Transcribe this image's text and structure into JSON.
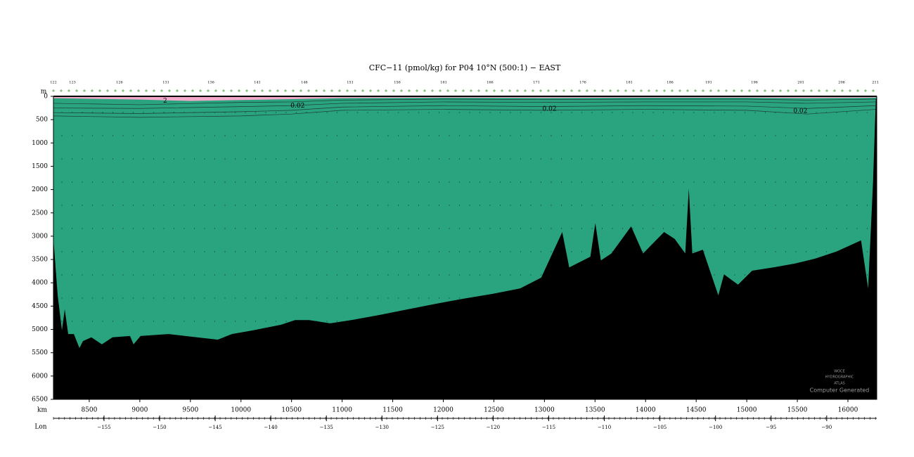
{
  "chart_data": {
    "type": "section",
    "title": "CFC−11 (pmol/kg) for P04 10°N (500:1) − EAST",
    "y_label": "m",
    "x_label": "km",
    "lon_label": "Lon",
    "ylim": [
      0,
      6500
    ],
    "yticks": [
      0,
      500,
      1000,
      1500,
      2000,
      2500,
      3000,
      3500,
      4000,
      4500,
      5000,
      5500,
      6000,
      6500
    ],
    "xlim": [
      8146,
      16285
    ],
    "xticks": [
      8500,
      9000,
      9500,
      10000,
      10500,
      11000,
      11500,
      12000,
      12500,
      13000,
      13500,
      14000,
      14500,
      15000,
      15500,
      16000
    ],
    "lonlim": [
      -159.55,
      -85.5
    ],
    "lonticks": [
      {
        "value": -155,
        "label": "−155"
      },
      {
        "value": -150,
        "label": "−150"
      },
      {
        "value": -145,
        "label": "−145"
      },
      {
        "value": -140,
        "label": "−140"
      },
      {
        "value": -135,
        "label": "−135"
      },
      {
        "value": -130,
        "label": "−130"
      },
      {
        "value": -125,
        "label": "−125"
      },
      {
        "value": -120,
        "label": "−120"
      },
      {
        "value": -115,
        "label": "−115"
      },
      {
        "value": -110,
        "label": "−110"
      },
      {
        "value": -105,
        "label": "−105"
      },
      {
        "value": -100,
        "label": "−100"
      },
      {
        "value": -95,
        "label": "−95"
      },
      {
        "value": -90,
        "label": "−90"
      }
    ],
    "stations": {
      "labels": [
        "122",
        "123",
        "126",
        "131",
        "136",
        "141",
        "146",
        "151",
        "156",
        "161",
        "166",
        "171",
        "176",
        "181",
        "186",
        "191",
        "196",
        "201",
        "206",
        "211"
      ],
      "x": [
        8146,
        8334,
        8799,
        9258,
        9703,
        10162,
        10627,
        11079,
        11545,
        12004,
        12462,
        12921,
        13380,
        13839,
        14242,
        14624,
        15076,
        15535,
        15938,
        16272
      ]
    },
    "water_color": "#2aa37f",
    "floor_color": "#000000",
    "surface_layer": {
      "color": "#f2a9c9",
      "x": [
        8146,
        9000,
        9500,
        10000,
        10500,
        11000,
        12000,
        13000,
        14000,
        15000,
        15600,
        16276
      ],
      "depth": [
        40,
        70,
        100,
        80,
        60,
        40,
        30,
        35,
        30,
        30,
        40,
        30
      ]
    },
    "contours": {
      "x": [
        8146,
        9000,
        10000,
        10500,
        11000,
        12000,
        13000,
        14000,
        15000,
        15600,
        16276
      ],
      "lines": [
        [
          150,
          180,
          130,
          120,
          80,
          60,
          70,
          60,
          60,
          80,
          60
        ],
        [
          250,
          260,
          220,
          200,
          150,
          120,
          130,
          120,
          120,
          150,
          120
        ],
        [
          350,
          370,
          330,
          300,
          230,
          200,
          220,
          200,
          210,
          260,
          200
        ],
        [
          420,
          450,
          420,
          380,
          300,
          280,
          300,
          280,
          300,
          380,
          280
        ]
      ]
    },
    "annotations": [
      {
        "text": "2",
        "x": 9250,
        "y": 100
      },
      {
        "text": "0.02",
        "x": 10560,
        "y": 200
      },
      {
        "text": "0.02",
        "x": 13050,
        "y": 270
      },
      {
        "text": "0.02",
        "x": 15530,
        "y": 320
      }
    ],
    "seafloor": {
      "x": [
        8146,
        8188,
        8230,
        8258,
        8292,
        8348,
        8403,
        8438,
        8521,
        8625,
        8730,
        8903,
        8938,
        9007,
        9285,
        9563,
        9771,
        9910,
        10118,
        10396,
        10535,
        10674,
        10883,
        11091,
        11369,
        11647,
        11925,
        12203,
        12481,
        12759,
        12968,
        13176,
        13245,
        13454,
        13503,
        13558,
        13662,
        13857,
        13975,
        14183,
        14288,
        14392,
        14427,
        14462,
        14566,
        14719,
        14775,
        14914,
        15053,
        15261,
        15470,
        15678,
        15887,
        16130,
        16200,
        16248,
        16276
      ],
      "depth": [
        3060,
        4270,
        5020,
        4570,
        5100,
        5100,
        5400,
        5250,
        5170,
        5320,
        5170,
        5140,
        5320,
        5140,
        5100,
        5170,
        5220,
        5100,
        5020,
        4900,
        4800,
        4800,
        4870,
        4800,
        4690,
        4570,
        4450,
        4340,
        4240,
        4120,
        3890,
        2910,
        3670,
        3440,
        2720,
        3520,
        3370,
        2790,
        3370,
        2910,
        3060,
        3370,
        1980,
        3370,
        3290,
        4270,
        3820,
        4040,
        3740,
        3670,
        3590,
        3480,
        3330,
        3090,
        4120,
        1860,
        50
      ]
    },
    "watermark": [
      "WOCE",
      "HYDROGRAPHIC",
      "ATLAS",
      "Computer Generated"
    ]
  }
}
